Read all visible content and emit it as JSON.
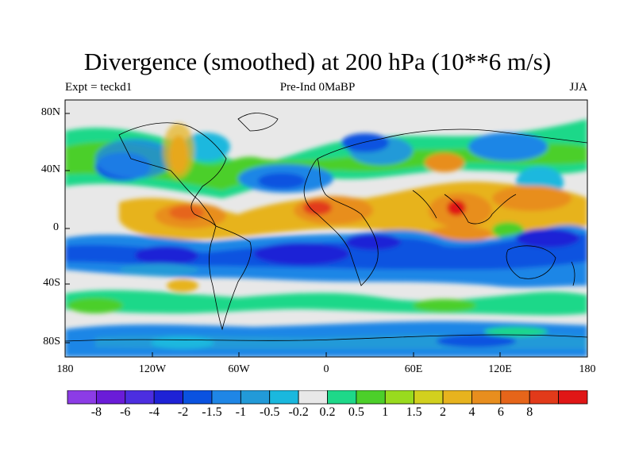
{
  "title": "Divergence (smoothed) at 200 hPa (10**6 m/s)",
  "left_string": "Expt = teckd1",
  "center_string": "Pre-Ind 0MaBP",
  "right_string": "JJA",
  "lat_ticks": [
    "80N",
    "40N",
    "0",
    "40S",
    "80S"
  ],
  "lon_ticks": [
    "180",
    "120W",
    "60W",
    "0",
    "60E",
    "120E",
    "180"
  ],
  "colorbar": {
    "colors": [
      "#8c3ce6",
      "#6a1cd8",
      "#4c2ee0",
      "#1e22d6",
      "#0a52e0",
      "#1f86e6",
      "#229ad8",
      "#1ab8de",
      "#e8e8e8",
      "#1ed889",
      "#4ccf2a",
      "#99db1e",
      "#d2d01e",
      "#e7b31e",
      "#e88e1e",
      "#e6651a",
      "#e23a1a",
      "#e01616"
    ],
    "labels": [
      "-8",
      "-6",
      "-4",
      "-2",
      "-1.5",
      "-1",
      "-0.5",
      "-0.2",
      "0.2",
      "0.5",
      "1",
      "1.5",
      "2",
      "4",
      "6",
      "8"
    ]
  }
}
